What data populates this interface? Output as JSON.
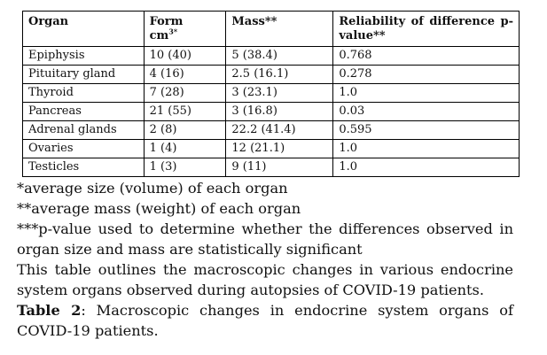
{
  "table": {
    "headers": {
      "organ": "Organ",
      "form_line1": "Form",
      "form_line2": "cm",
      "form_sup": "3*",
      "mass": "Mass**",
      "reliability_line1": "Reliability of difference p-",
      "reliability_line2": "value**"
    },
    "rows": [
      {
        "organ": "Epiphysis",
        "form": "10 (40)",
        "mass": "5 (38.4)",
        "p": "0.768"
      },
      {
        "organ": "Pituitary gland",
        "form": "4 (16)",
        "mass": "2.5 (16.1)",
        "p": "0.278"
      },
      {
        "organ": "Thyroid",
        "form": "7 (28)",
        "mass": "3 (23.1)",
        "p": "1.0"
      },
      {
        "organ": "Pancreas",
        "form": "21 (55)",
        "mass": "3 (16.8)",
        "p": "0.03"
      },
      {
        "organ": "Adrenal glands",
        "form": "2 (8)",
        "mass": "22.2 (41.4)",
        "p": "0.595"
      },
      {
        "organ": "Ovaries",
        "form": "1 (4)",
        "mass": "12 (21.1)",
        "p": "1.0"
      },
      {
        "organ": "Testicles",
        "form": "1 (3)",
        "mass": "9 (11)",
        "p": "1.0"
      }
    ]
  },
  "notes": {
    "note1": "*average size (volume) of each organ",
    "note2": "**average mass (weight) of each organ",
    "note3": "***p-value used to determine whether the differences observed in organ size and mass are statistically significant",
    "description": "This table outlines the macroscopic changes in various endocrine system organs observed during autopsies of COVID-19 patients."
  },
  "caption": {
    "label": "Table 2",
    "text": ": Macroscopic changes in endocrine system organs of COVID-19 patients."
  }
}
